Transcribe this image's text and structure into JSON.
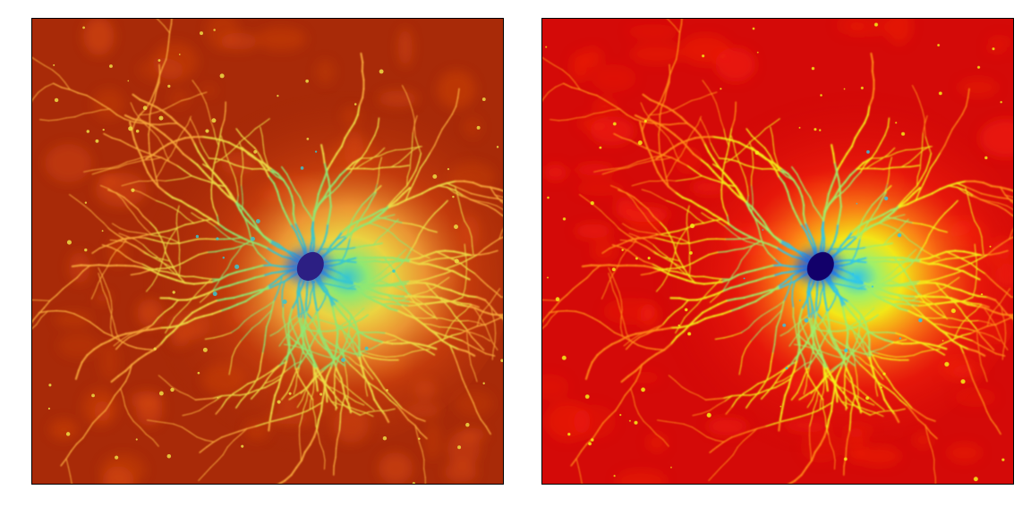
{
  "figure": {
    "panels": [
      {
        "colormap": "red-orange-yellow-green-blue",
        "palette": {
          "background": "#a82a08",
          "mid_background": "#d8480f",
          "halo": "#f6a63a",
          "halo_inner": "#eddd45",
          "green": "#8fe872",
          "cyan": "#39c6cf",
          "blue": "#2d63d8",
          "soma": "#2c1f83"
        }
      },
      {
        "colormap": "jet",
        "palette": {
          "background": "#d40a08",
          "mid_background": "#f5230d",
          "halo": "#ff8c17",
          "halo_inner": "#f4f319",
          "green": "#9ff06a",
          "cyan": "#30c6e9",
          "blue": "#1a4fe0",
          "soma": "#12006a"
        }
      }
    ]
  }
}
